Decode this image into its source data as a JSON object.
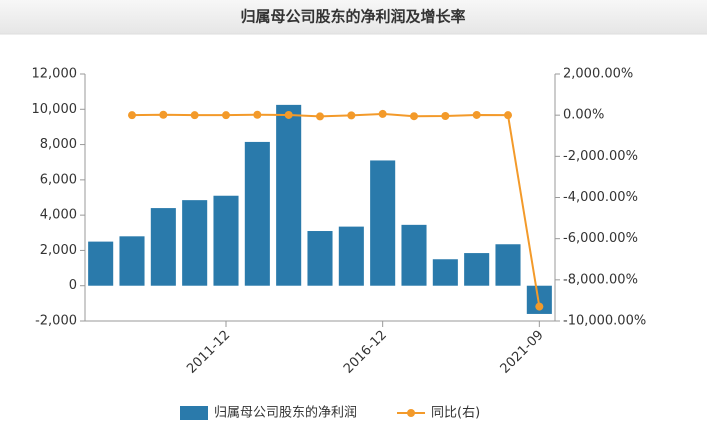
{
  "chart_data": {
    "type": "bar_line",
    "title": "归属母公司股东的净利润及增长率",
    "categories": [
      null,
      null,
      null,
      null,
      "2011-12",
      null,
      null,
      null,
      null,
      "2016-12",
      null,
      null,
      null,
      null,
      "2021-09"
    ],
    "series": [
      {
        "name": "归属母公司股东的净利润",
        "type": "bar",
        "color": "#2a7aab",
        "axis": "y",
        "values": [
          2500,
          2800,
          4400,
          4850,
          5100,
          8150,
          10250,
          3100,
          3350,
          7100,
          3450,
          1500,
          1850,
          2350,
          -1600
        ]
      },
      {
        "name": "同比(右)",
        "type": "line",
        "color": "#f39a2a",
        "axis": "y2",
        "values": [
          null,
          0,
          20,
          0,
          0,
          20,
          10,
          -60,
          -10,
          60,
          -50,
          -40,
          10,
          0,
          -9300
        ]
      }
    ],
    "ylim": [
      -2000,
      12000
    ],
    "yticks": [
      {
        "value": -2000,
        "label": "-2,000"
      },
      0,
      {
        "value": 2000,
        "label": "2,000"
      },
      {
        "value": 4000,
        "label": "4,000"
      },
      {
        "value": 6000,
        "label": "6,000"
      },
      {
        "value": 8000,
        "label": "8,000"
      },
      {
        "value": 10000,
        "label": "10,000"
      },
      {
        "value": 12000,
        "label": "12,000"
      }
    ],
    "y2lim": [
      -10000,
      2000
    ],
    "y2ticks": [
      {
        "value": -10000,
        "label": "-10,000.00%"
      },
      {
        "value": -8000,
        "label": "-8,000.00%"
      },
      {
        "value": -6000,
        "label": "-6,000.00%"
      },
      {
        "value": -4000,
        "label": "-4,000.00%"
      },
      {
        "value": -2000,
        "label": "-2,000.00%"
      },
      {
        "value": 0,
        "label": "0.00%"
      },
      {
        "value": 2000,
        "label": "2,000.00%"
      }
    ],
    "grid": false,
    "legend": "bottom"
  }
}
